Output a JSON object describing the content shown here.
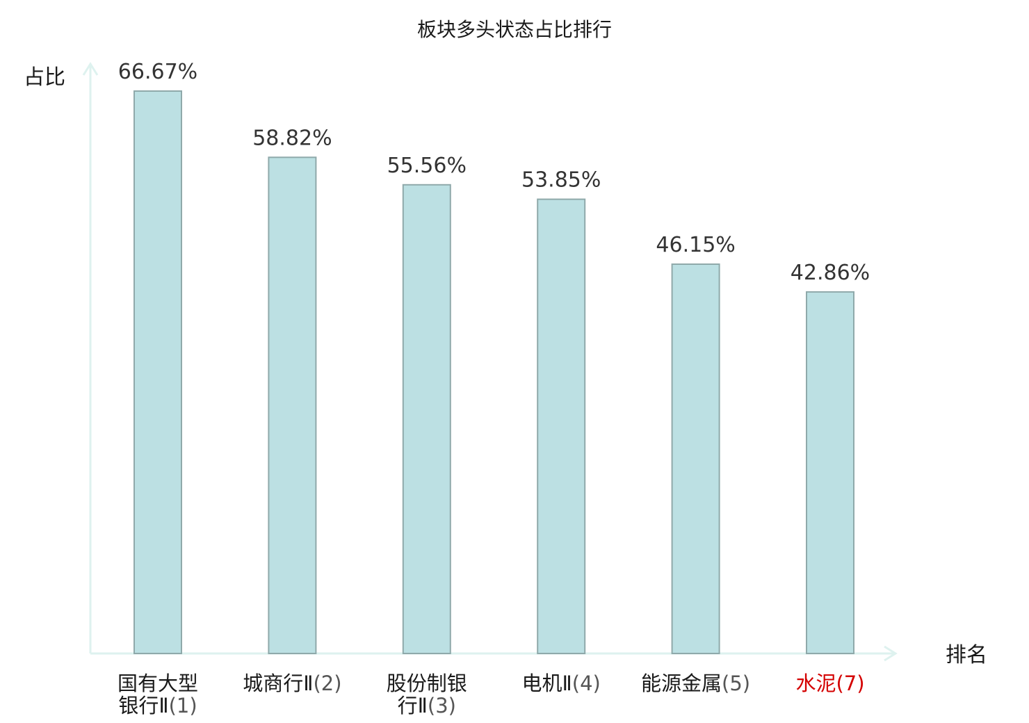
{
  "chart_data": {
    "type": "bar",
    "title": "板块多头状态占比排行",
    "ylabel": "占比",
    "xlabel": "排名",
    "ylim": [
      0,
      70
    ],
    "grid": false,
    "legend": "none",
    "categories": [
      {
        "lines": [
          {
            "name": "国有大型",
            "num": ""
          },
          {
            "name": "银行Ⅱ",
            "num": "(1)"
          }
        ],
        "highlight": false
      },
      {
        "lines": [
          {
            "name": "城商行Ⅱ",
            "num": "(2)"
          }
        ],
        "highlight": false
      },
      {
        "lines": [
          {
            "name": "股份制银",
            "num": ""
          },
          {
            "name": "行Ⅱ",
            "num": "(3)"
          }
        ],
        "highlight": false
      },
      {
        "lines": [
          {
            "name": "电机Ⅱ",
            "num": "(4)"
          }
        ],
        "highlight": false
      },
      {
        "lines": [
          {
            "name": "能源金属",
            "num": "(5)"
          }
        ],
        "highlight": false
      },
      {
        "lines": [
          {
            "name": "水泥",
            "num": "(7)"
          }
        ],
        "highlight": true
      }
    ],
    "values": [
      66.67,
      58.82,
      55.56,
      53.85,
      46.15,
      42.86
    ],
    "value_labels": [
      "66.67%",
      "58.82%",
      "55.56%",
      "53.85%",
      "46.15%",
      "42.86%"
    ]
  },
  "colors": {
    "bar_fill": "#bce0e3",
    "bar_stroke": "#8fa9aa",
    "axis": "#def2ef",
    "highlight_text": "#d40000"
  }
}
